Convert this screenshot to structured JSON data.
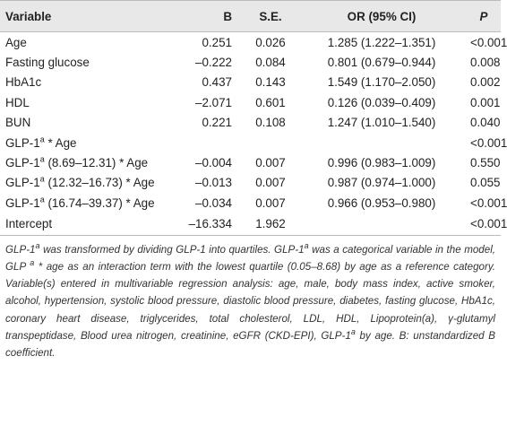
{
  "table": {
    "header": [
      "Variable",
      "B",
      "S.E.",
      "OR (95% CI)",
      "P"
    ],
    "rows": [
      {
        "variable": [
          {
            "text": "Age"
          }
        ],
        "cells": [
          "0.251",
          "0.026",
          "1.285 (1.222–1.351)",
          "<0.001"
        ]
      },
      {
        "variable": [
          {
            "text": "Fasting glucose"
          }
        ],
        "cells": [
          "–0.222",
          "0.084",
          "0.801 (0.679–0.944)",
          "0.008"
        ]
      },
      {
        "variable": [
          {
            "text": "HbA1c"
          }
        ],
        "cells": [
          "0.437",
          "0.143",
          "1.549 (1.170–2.050)",
          "0.002"
        ]
      },
      {
        "variable": [
          {
            "text": "HDL"
          }
        ],
        "cells": [
          "–2.071",
          "0.601",
          "0.126 (0.039–0.409)",
          "0.001"
        ]
      },
      {
        "variable": [
          {
            "text": "BUN"
          }
        ],
        "cells": [
          "0.221",
          "0.108",
          "1.247 (1.010–1.540)",
          "0.040"
        ]
      },
      {
        "variable": [
          {
            "text": "GLP-1"
          },
          {
            "sup": "a"
          },
          {
            "text": " * Age"
          }
        ],
        "cells": [
          null,
          null,
          null,
          "<0.001"
        ]
      },
      {
        "variable": [
          {
            "text": "GLP-1"
          },
          {
            "sup": "a"
          },
          {
            "text": " (8.69–12.31) * Age"
          }
        ],
        "cells": [
          "–0.004",
          "0.007",
          "0.996 (0.983–1.009)",
          "0.550"
        ]
      },
      {
        "variable": [
          {
            "text": "GLP-1"
          },
          {
            "sup": "a"
          },
          {
            "text": " (12.32–16.73) * Age"
          }
        ],
        "cells": [
          "–0.013",
          "0.007",
          "0.987 (0.974–1.000)",
          "0.055"
        ]
      },
      {
        "variable": [
          {
            "text": "GLP-1"
          },
          {
            "sup": "a"
          },
          {
            "text": " (16.74–39.37) * Age"
          }
        ],
        "cells": [
          "–0.034",
          "0.007",
          "0.966 (0.953–0.980)",
          "<0.001"
        ]
      },
      {
        "variable": [
          {
            "text": "Intercept"
          }
        ],
        "cells": [
          "–16.334",
          "1.962",
          null,
          "<0.001"
        ]
      }
    ]
  },
  "footnote": [
    {
      "text": "GLP-1"
    },
    {
      "sup": "a"
    },
    {
      "text": " was transformed by dividing GLP-1 into quartiles. GLP-1"
    },
    {
      "sup": "a"
    },
    {
      "text": " was a categorical variable in the model, GLP "
    },
    {
      "sup": "a"
    },
    {
      "text": " * age as an interaction term with the lowest quartile (0.05–8.68) by age as a reference category. Variable(s) entered in multivariable regression analysis: age, male, body mass index, active smoker, alcohol, hypertension, systolic blood pressure, diastolic blood pressure, diabetes, fasting glucose, HbA1c, coronary heart disease, triglycerides, total cholesterol, LDL, HDL, Lipoprotein(a), γ-glutamyl transpeptidase, Blood urea nitrogen, creatinine, eGFR (CKD-EPI), GLP-1"
    },
    {
      "sup": "a"
    },
    {
      "text": " by age. B: unstandardized B coefficient."
    }
  ]
}
